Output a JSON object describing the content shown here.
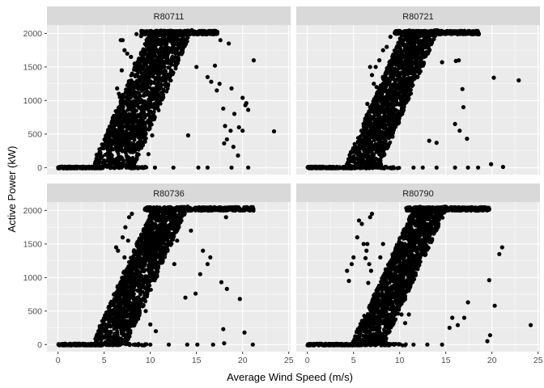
{
  "chart_data": {
    "type": "scatter",
    "facet_layout": "2x2",
    "xlabel": "Average Wind Speed (m/s)",
    "ylabel": "Active Power (kW)",
    "xlim": [
      -1.2,
      25.2
    ],
    "ylim": [
      -105,
      2125
    ],
    "x_ticks": [
      0,
      5,
      10,
      15,
      20,
      25
    ],
    "y_ticks": [
      0,
      500,
      1000,
      1500,
      2000
    ],
    "grid": true,
    "colors": {
      "panel_bg": "#ebebeb",
      "strip_bg": "#d9d9d9",
      "grid_major": "#ffffff",
      "point": "#000000"
    },
    "panels": [
      {
        "strip": "R80711",
        "x_ticks_shown": false,
        "band": {
          "start_x": 3.6,
          "width": 4.6,
          "ramp_end_x": 11.0,
          "top": 2040,
          "top_end_x": 17.3
        },
        "outliers": [
          [
            6.8,
            1900
          ],
          [
            6.9,
            1450
          ],
          [
            7.2,
            1750
          ],
          [
            7.5,
            1700
          ],
          [
            7.9,
            1650
          ],
          [
            8.3,
            1550
          ],
          [
            8.5,
            1990
          ],
          [
            9.0,
            1960
          ],
          [
            7.0,
            1900
          ],
          [
            6.4,
            1180
          ],
          [
            6.6,
            1100
          ],
          [
            6.7,
            1050
          ],
          [
            6.8,
            980
          ],
          [
            6.2,
            720
          ],
          [
            6.0,
            600
          ],
          [
            9.5,
            1750
          ],
          [
            9.3,
            1350
          ],
          [
            9.8,
            200
          ],
          [
            10.2,
            480
          ],
          [
            9.6,
            900
          ],
          [
            9.4,
            880
          ],
          [
            14.1,
            480
          ],
          [
            15.0,
            1500
          ],
          [
            16.2,
            1350
          ],
          [
            17.0,
            1520
          ],
          [
            17.6,
            1900
          ],
          [
            18.5,
            1850
          ],
          [
            19.1,
            800
          ],
          [
            19.6,
            600
          ],
          [
            20.0,
            550
          ],
          [
            20.3,
            930
          ],
          [
            18.7,
            550
          ],
          [
            18.1,
            620
          ],
          [
            17.9,
            880
          ],
          [
            17.5,
            1250
          ],
          [
            18.3,
            420
          ],
          [
            18.0,
            360
          ],
          [
            19.0,
            310
          ],
          [
            19.5,
            180
          ],
          [
            18.8,
            1180
          ],
          [
            20.4,
            960
          ],
          [
            20.6,
            860
          ],
          [
            20.0,
            1040
          ],
          [
            21.2,
            1600
          ],
          [
            17.2,
            1150
          ],
          [
            16.6,
            1280
          ],
          [
            23.4,
            540
          ],
          [
            20.6,
            0
          ],
          [
            18.8,
            0
          ],
          [
            16.2,
            0
          ],
          [
            15.2,
            0
          ],
          [
            12.5,
            0
          ],
          [
            10.5,
            0
          ]
        ]
      },
      {
        "strip": "R80721",
        "x_ticks_shown": false,
        "band": {
          "start_x": 4.0,
          "width": 3.8,
          "ramp_end_x": 11.4,
          "top": 2040,
          "top_end_x": 18.6
        },
        "outliers": [
          [
            7.4,
            1500
          ],
          [
            7.8,
            1600
          ],
          [
            8.2,
            1750
          ],
          [
            8.6,
            1800
          ],
          [
            9.0,
            1950
          ],
          [
            6.8,
            1500
          ],
          [
            7.0,
            1380
          ],
          [
            7.2,
            1250
          ],
          [
            7.5,
            1200
          ],
          [
            6.5,
            950
          ],
          [
            6.8,
            900
          ],
          [
            8.0,
            680
          ],
          [
            7.8,
            580
          ],
          [
            9.2,
            870
          ],
          [
            14.0,
            370
          ],
          [
            13.2,
            400
          ],
          [
            16.1,
            1590
          ],
          [
            16.8,
            1170
          ],
          [
            16.9,
            900
          ],
          [
            16.4,
            1600
          ],
          [
            14.6,
            1570
          ],
          [
            16.0,
            650
          ],
          [
            16.5,
            550
          ],
          [
            17.3,
            430
          ],
          [
            20.2,
            1340
          ],
          [
            22.9,
            1300
          ],
          [
            21.2,
            10
          ],
          [
            19.9,
            50
          ],
          [
            18.5,
            0
          ],
          [
            17.4,
            0
          ],
          [
            16.0,
            0
          ],
          [
            14.0,
            0
          ],
          [
            12.5,
            0
          ],
          [
            11.5,
            0
          ],
          [
            6.0,
            100
          ],
          [
            6.2,
            200
          ]
        ]
      },
      {
        "strip": "R80736",
        "x_ticks_shown": true,
        "band": {
          "start_x": 3.6,
          "width": 3.8,
          "ramp_end_x": 11.4,
          "top": 2050,
          "top_end_x": 21.2
        },
        "outliers": [
          [
            6.3,
            1450
          ],
          [
            6.5,
            1400
          ],
          [
            7.0,
            1600
          ],
          [
            7.3,
            1750
          ],
          [
            7.7,
            1900
          ],
          [
            8.0,
            1950
          ],
          [
            7.2,
            1300
          ],
          [
            7.6,
            1550
          ],
          [
            7.4,
            350
          ],
          [
            7.8,
            300
          ],
          [
            8.2,
            400
          ],
          [
            9.0,
            650
          ],
          [
            9.5,
            500
          ],
          [
            10.0,
            300
          ],
          [
            10.6,
            200
          ],
          [
            12.9,
            1550
          ],
          [
            12.6,
            1200
          ],
          [
            11.6,
            1350
          ],
          [
            13.8,
            700
          ],
          [
            14.9,
            760
          ],
          [
            14.4,
            1700
          ],
          [
            15.4,
            1050
          ],
          [
            15.7,
            1400
          ],
          [
            16.2,
            1200
          ],
          [
            16.5,
            1300
          ],
          [
            15.5,
            2000
          ],
          [
            18.2,
            1900
          ],
          [
            17.7,
            930
          ],
          [
            18.3,
            830
          ],
          [
            19.7,
            680
          ],
          [
            20.2,
            180
          ],
          [
            17.9,
            230
          ],
          [
            18.0,
            20
          ],
          [
            21.1,
            0
          ],
          [
            16.8,
            0
          ],
          [
            15.1,
            0
          ],
          [
            14.0,
            0
          ],
          [
            12.0,
            0
          ],
          [
            10.0,
            0
          ]
        ]
      },
      {
        "strip": "R80790",
        "x_ticks_shown": true,
        "band": {
          "start_x": 4.7,
          "width": 3.6,
          "ramp_end_x": 12.7,
          "top": 2050,
          "top_end_x": 19.8
        },
        "outliers": [
          [
            4.3,
            1100
          ],
          [
            4.5,
            950
          ],
          [
            4.8,
            1200
          ],
          [
            5.0,
            1300
          ],
          [
            5.4,
            1600
          ],
          [
            5.6,
            1850
          ],
          [
            5.9,
            1800
          ],
          [
            6.5,
            1500
          ],
          [
            6.8,
            1900
          ],
          [
            7.0,
            1950
          ],
          [
            6.1,
            1500
          ],
          [
            6.4,
            1400
          ],
          [
            6.7,
            1200
          ],
          [
            6.9,
            1100
          ],
          [
            6.3,
            1290
          ],
          [
            6.6,
            920
          ],
          [
            7.9,
            1300
          ],
          [
            8.2,
            1500
          ],
          [
            7.0,
            350
          ],
          [
            7.2,
            250
          ],
          [
            9.5,
            650
          ],
          [
            9.9,
            550
          ],
          [
            10.2,
            450
          ],
          [
            10.6,
            320
          ],
          [
            11.0,
            450
          ],
          [
            10.8,
            850
          ],
          [
            10.4,
            880
          ],
          [
            15.7,
            400
          ],
          [
            15.4,
            250
          ],
          [
            17.4,
            630
          ],
          [
            19.7,
            960
          ],
          [
            20.3,
            580
          ],
          [
            21.1,
            1450
          ],
          [
            20.8,
            1350
          ],
          [
            19.8,
            140
          ],
          [
            19.5,
            50
          ],
          [
            16.3,
            290
          ],
          [
            24.2,
            290
          ],
          [
            17.0,
            400
          ],
          [
            14.6,
            0
          ],
          [
            13.0,
            0
          ],
          [
            11.5,
            0
          ]
        ]
      }
    ]
  }
}
